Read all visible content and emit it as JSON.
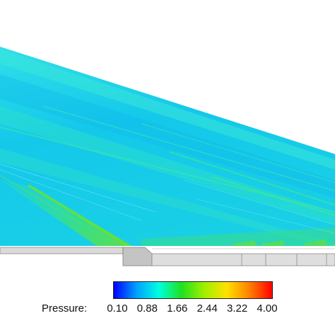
{
  "legend": {
    "title": "Pressure:",
    "ticks": [
      "0.10",
      "0.88",
      "1.66",
      "2.44",
      "3.22",
      "4.00"
    ],
    "range": [
      0.1,
      4.0
    ],
    "colormap": [
      "#0000ff",
      "#00a0ff",
      "#00ffe0",
      "#20e020",
      "#a0f000",
      "#ffe000",
      "#ff8000",
      "#ff0000"
    ]
  },
  "colors": {
    "field_base": "#1fd8e8",
    "field_deep": "#12c4ec",
    "shock_green": "#40e070",
    "wall_gray": "#d8d8d8",
    "wall_edge": "#8a8a8a"
  }
}
